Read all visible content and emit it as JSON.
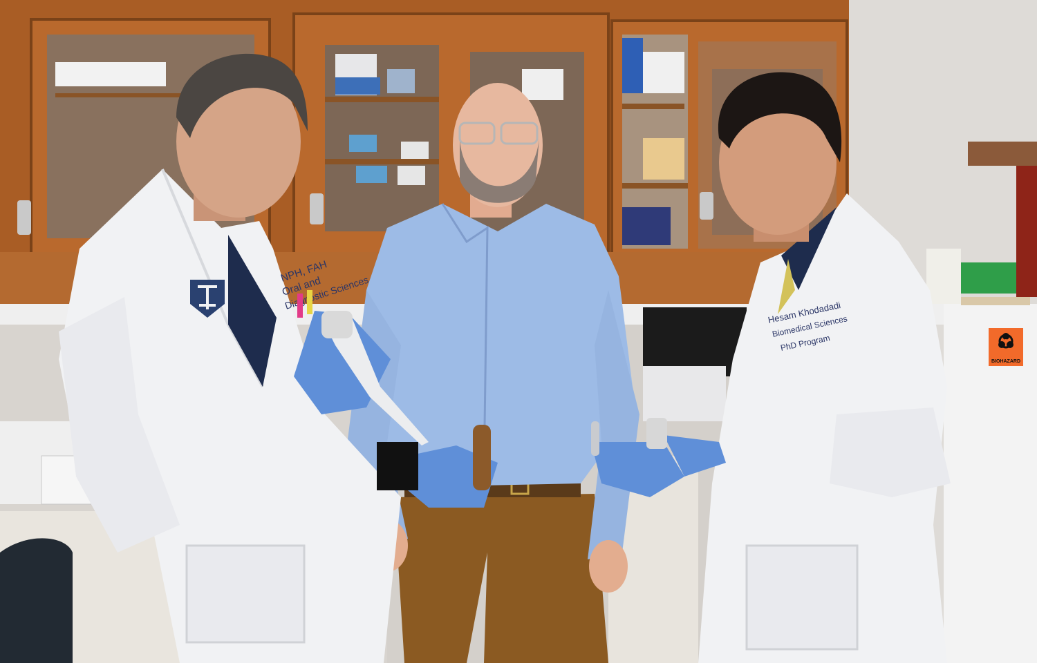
{
  "scene": {
    "description_role": "photo",
    "colors": {
      "wall": "#d9d6d2",
      "cabinet_wood": "#b4682c",
      "cabinet_dark": "#7a4218",
      "coat_white": "#f1f2f4",
      "glove_blue": "#5f8fd8",
      "shirt_blue": "#9dbbe6",
      "pants_brown": "#8b5a22",
      "biohazard_orange": "#f26a2a"
    }
  },
  "left_coat": {
    "embroidery_line1": "NPH, FAH",
    "embroidery_line2": "Oral and",
    "embroidery_line3": "Diagnostic Sciences"
  },
  "right_coat": {
    "embroidery_name": "Hesam Khodadadi",
    "embroidery_line2": "Biomedical Sciences",
    "embroidery_line3": "PhD Program"
  },
  "biohazard_label": {
    "text": "BIOHAZARD"
  },
  "icons": {
    "biohazard": "biohazard-icon",
    "university_logo": "university-logo-icon"
  }
}
